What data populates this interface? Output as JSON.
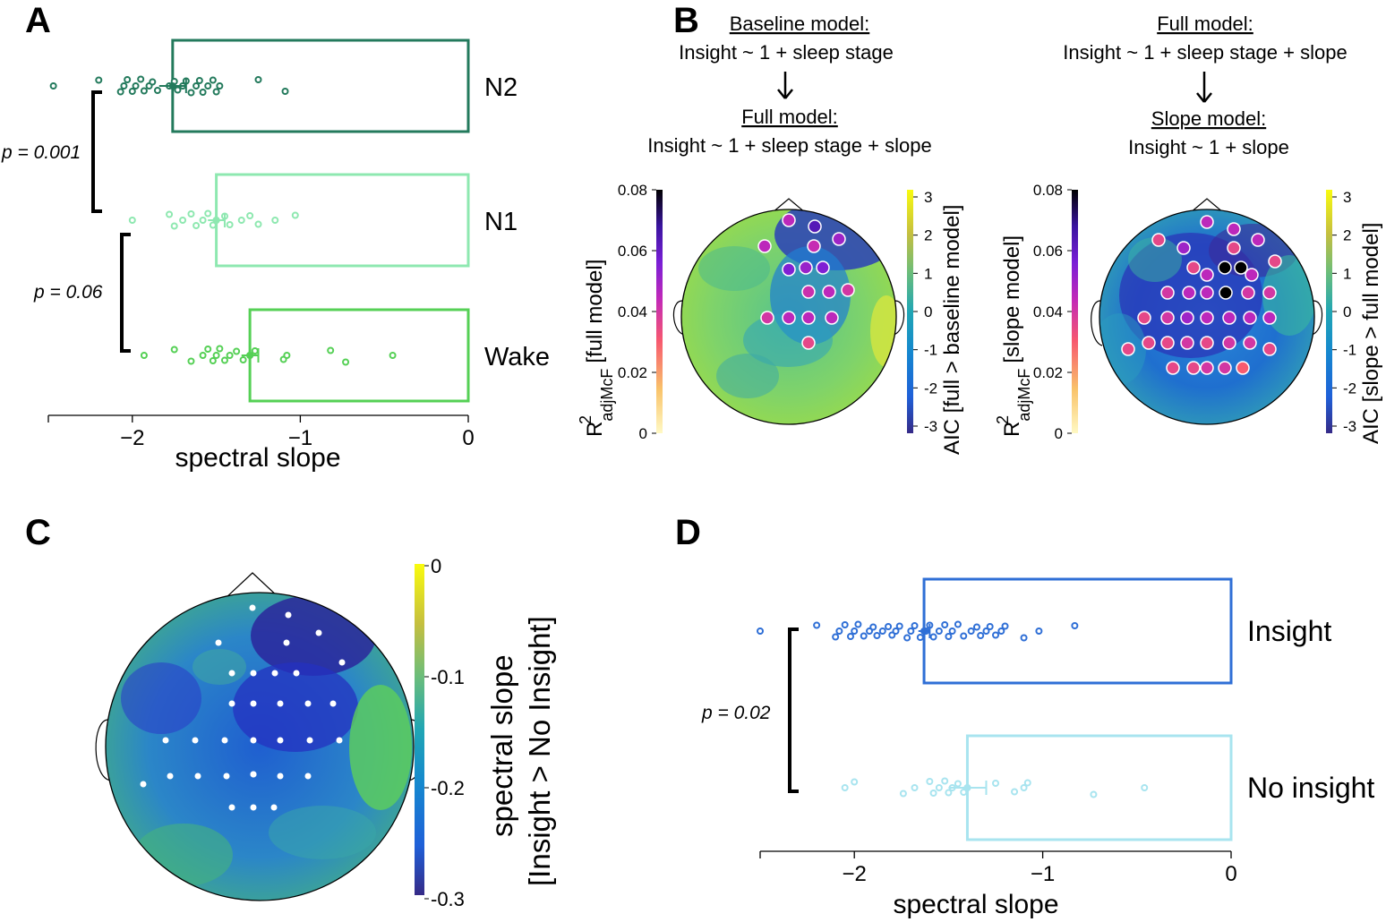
{
  "panels": {
    "A": {
      "letter": "A",
      "xlabel": "spectral slope",
      "ticks": [
        "−2",
        "−1",
        "0"
      ],
      "pvals": [
        "p = 0.001",
        "p = 0.06"
      ]
    },
    "B": {
      "letter": "B",
      "left": {
        "top_title": "Baseline model:",
        "top_formula": "Insight ~ 1 + sleep stage",
        "bottom_title": "Full model:",
        "bottom_formula": "Insight ~ 1 + sleep stage + slope",
        "r2_label": "R",
        "r2_sup": "2",
        "r2_sub": "adjMcF",
        "r2_bracket": "[full model]",
        "aic_label": "AIC [full > baseline model]"
      },
      "right": {
        "top_title": "Full model:",
        "top_formula": "Insight ~ 1 + sleep stage + slope",
        "bottom_title": "Slope model:",
        "bottom_formula": "Insight ~ 1 + slope",
        "r2_label": "R",
        "r2_sup": "2",
        "r2_sub": "adjMcF",
        "r2_bracket": "[slope model]",
        "aic_label": "AIC [slope > full model]"
      },
      "r2_ticks": [
        "0.08",
        "0.06",
        "0.04",
        "0.02",
        "0"
      ],
      "aic_ticks": [
        "3",
        "2",
        "1",
        "0",
        "-1",
        "-2",
        "-3"
      ]
    },
    "C": {
      "letter": "C",
      "cb_label_1": "spectral slope",
      "cb_label_2": "[Insight > No Insight]",
      "cb_ticks": [
        "0",
        "-0.1",
        "-0.2",
        "-0.3"
      ]
    },
    "D": {
      "letter": "D",
      "xlabel": "spectral slope",
      "ticks": [
        "−2",
        "−1",
        "0"
      ],
      "pvals": [
        "p = 0.02"
      ]
    }
  },
  "colors": {
    "N2": "#237a5c",
    "N1": "#8ee8b0",
    "Wake": "#55d055",
    "Insight": "#2f6fd6",
    "NoInsight": "#a8e4ef",
    "parula_low": "#352a87",
    "parula_mid": "#2db8a0",
    "parula_high": "#f9fb0e"
  },
  "chart_data": [
    {
      "type": "bar",
      "panel": "A",
      "orientation": "horizontal",
      "categories": [
        "N2",
        "N1",
        "Wake"
      ],
      "values": [
        -1.76,
        -1.5,
        -1.3
      ],
      "errors": [
        0.08,
        0.05,
        0.05
      ],
      "xlim": [
        -2.5,
        0
      ],
      "xlabel": "spectral slope",
      "points": {
        "N2": [
          -2.47,
          -2.2,
          -2.07,
          -2.05,
          -2.03,
          -2.0,
          -1.98,
          -1.95,
          -1.93,
          -1.9,
          -1.88,
          -1.85,
          -1.78,
          -1.75,
          -1.73,
          -1.7,
          -1.68,
          -1.65,
          -1.62,
          -1.6,
          -1.58,
          -1.55,
          -1.52,
          -1.5,
          -1.48,
          -1.25,
          -1.09
        ],
        "N1": [
          -2.0,
          -1.78,
          -1.75,
          -1.7,
          -1.65,
          -1.62,
          -1.58,
          -1.55,
          -1.52,
          -1.5,
          -1.45,
          -1.42,
          -1.35,
          -1.3,
          -1.25,
          -1.15,
          -1.03
        ],
        "Wake": [
          -1.93,
          -1.75,
          -1.65,
          -1.58,
          -1.55,
          -1.52,
          -1.5,
          -1.48,
          -1.45,
          -1.42,
          -1.38,
          -1.34,
          -1.3,
          -1.27,
          -1.1,
          -1.08,
          -0.82,
          -0.73,
          -0.45
        ]
      },
      "annotations": [
        {
          "between": [
            "N2",
            "N1"
          ],
          "text": "p = 0.001"
        },
        {
          "between": [
            "N1",
            "Wake"
          ],
          "text": "p = 0.06"
        }
      ]
    },
    {
      "type": "heatmap",
      "panel": "B-left",
      "r2_ylim": [
        0,
        0.08
      ],
      "aic_ylim": [
        -3,
        3
      ],
      "electrodes_r2": [
        0.045,
        0.063,
        0.05,
        0.045,
        0.043,
        0.055,
        0.051,
        0.055,
        0.042,
        0.045,
        0.04,
        0.04,
        0.045,
        0.045,
        0.045,
        0.035
      ]
    },
    {
      "type": "heatmap",
      "panel": "B-right",
      "r2_ylim": [
        0,
        0.08
      ],
      "aic_ylim": [
        -3,
        3
      ],
      "electrodes_r2": [
        0.07,
        0.065,
        0.065,
        0.07,
        0.035,
        0.07,
        0.045,
        0.08,
        0.07,
        0.035,
        0.045,
        0.06,
        0.045,
        0.045,
        0.065
      ]
    },
    {
      "type": "heatmap",
      "panel": "C",
      "colorbar_range": [
        -0.3,
        0
      ],
      "colorbar_ticks": [
        0,
        -0.1,
        -0.2,
        -0.3
      ],
      "label": "spectral slope [Insight > No Insight]",
      "electrode_count": 33
    },
    {
      "type": "bar",
      "panel": "D",
      "orientation": "horizontal",
      "categories": [
        "Insight",
        "No insight"
      ],
      "values": [
        -1.63,
        -1.4
      ],
      "errors": [
        0.03,
        0.1
      ],
      "xlim": [
        -2.5,
        0
      ],
      "xlabel": "spectral slope",
      "points": {
        "Insight": [
          -2.5,
          -2.2,
          -2.1,
          -2.08,
          -2.05,
          -2.02,
          -2.0,
          -1.98,
          -1.95,
          -1.92,
          -1.9,
          -1.88,
          -1.85,
          -1.82,
          -1.8,
          -1.78,
          -1.76,
          -1.72,
          -1.7,
          -1.68,
          -1.65,
          -1.62,
          -1.6,
          -1.58,
          -1.55,
          -1.52,
          -1.5,
          -1.48,
          -1.45,
          -1.42,
          -1.38,
          -1.35,
          -1.33,
          -1.3,
          -1.28,
          -1.25,
          -1.22,
          -1.2,
          -1.1,
          -1.02,
          -0.83
        ],
        "No insight": [
          -2.05,
          -2.0,
          -1.74,
          -1.68,
          -1.6,
          -1.58,
          -1.55,
          -1.52,
          -1.5,
          -1.48,
          -1.45,
          -1.42,
          -1.4,
          -1.25,
          -1.15,
          -1.1,
          -1.08,
          -0.73,
          -0.46
        ]
      },
      "annotations": [
        {
          "between": [
            "Insight",
            "No insight"
          ],
          "text": "p = 0.02"
        }
      ]
    }
  ]
}
